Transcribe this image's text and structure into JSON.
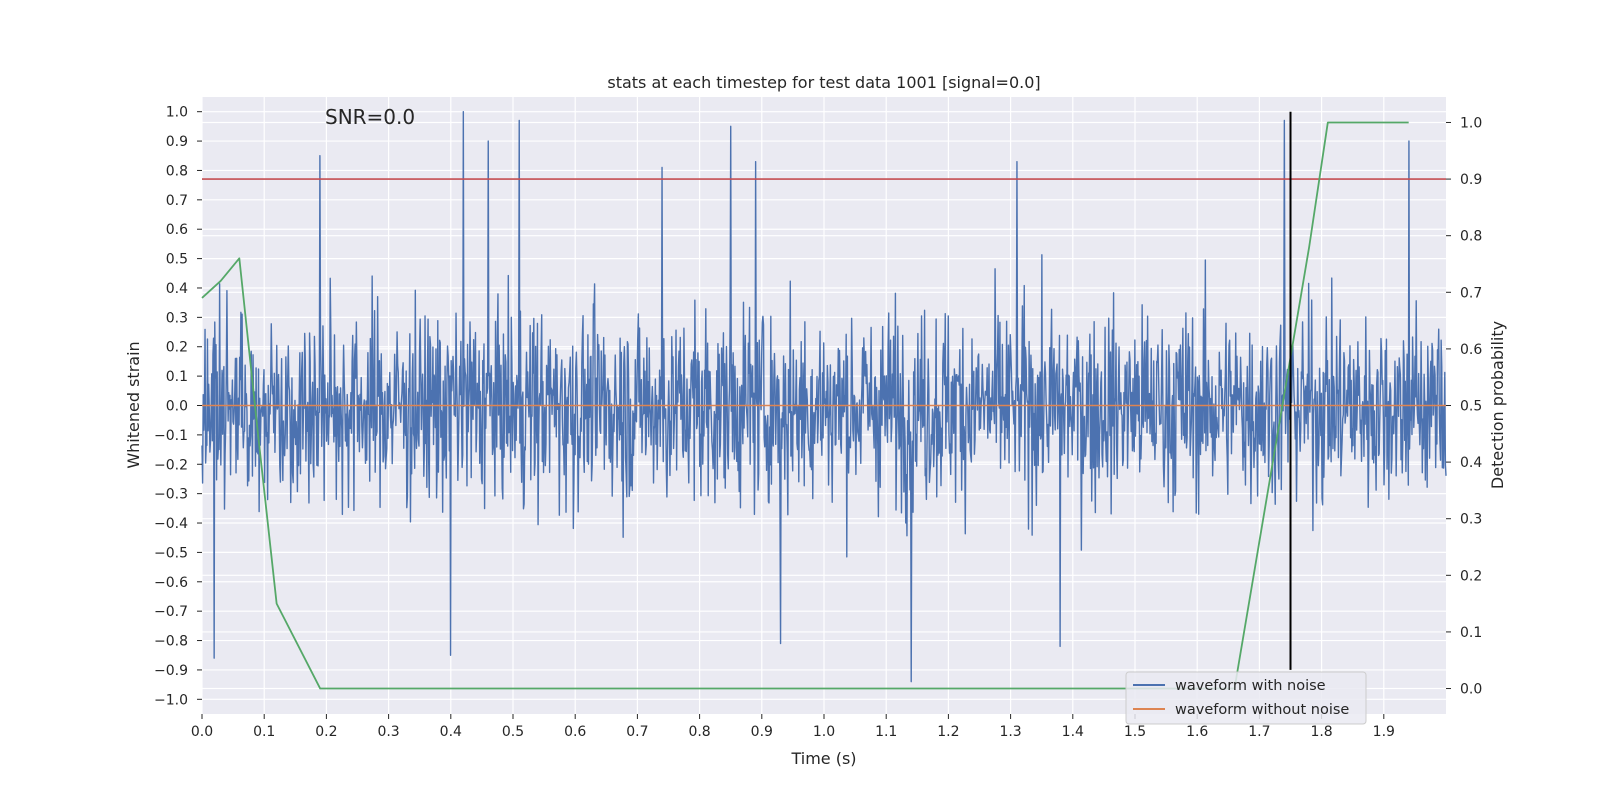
{
  "chart_data": {
    "type": "line",
    "title": "stats at each timestep for test data 1001 [signal=0.0]",
    "annotation": "SNR=0.0",
    "xlabel": "Time (s)",
    "ylabel": "Whitened strain",
    "y2label": "Detection probability",
    "xlim": [
      0.0,
      2.0
    ],
    "ylim": [
      -1.05,
      1.05
    ],
    "y2lim": [
      -0.045,
      1.045
    ],
    "xticks": [
      "0.0",
      "0.1",
      "0.2",
      "0.3",
      "0.4",
      "0.5",
      "0.6",
      "0.7",
      "0.8",
      "0.9",
      "1.0",
      "1.1",
      "1.2",
      "1.3",
      "1.4",
      "1.5",
      "1.6",
      "1.7",
      "1.8",
      "1.9"
    ],
    "yticks": [
      "1.0",
      "0.9",
      "0.8",
      "0.7",
      "0.6",
      "0.5",
      "0.4",
      "0.3",
      "0.2",
      "0.1",
      "0.0",
      "−0.1",
      "−0.2",
      "−0.3",
      "−0.4",
      "−0.5",
      "−0.6",
      "−0.7",
      "−0.8",
      "−0.9",
      "−1.0"
    ],
    "y2ticks": [
      "1.0",
      "0.9",
      "0.8",
      "0.7",
      "0.6",
      "0.5",
      "0.4",
      "0.3",
      "0.2",
      "0.1",
      "0.0"
    ],
    "threshold": {
      "axis": "right",
      "value": 0.9,
      "color": "#c44e52"
    },
    "vline": {
      "x": 1.75,
      "color": "#000000"
    },
    "series": [
      {
        "name": "waveform with noise",
        "axis": "left",
        "color": "#4c72b0",
        "kind": "noise",
        "n_samples": 2048,
        "t_start": 0.0,
        "t_end": 2.0,
        "peaks": [
          {
            "x": 0.42,
            "y": 1.0
          },
          {
            "x": 0.51,
            "y": 0.97
          },
          {
            "x": 1.74,
            "y": 0.97
          },
          {
            "x": 0.85,
            "y": 0.95
          },
          {
            "x": 0.19,
            "y": 0.85
          },
          {
            "x": 1.14,
            "y": -0.94
          },
          {
            "x": 0.02,
            "y": -0.86
          },
          {
            "x": 0.4,
            "y": -0.85
          },
          {
            "x": 1.38,
            "y": -0.82
          },
          {
            "x": 0.93,
            "y": -0.81
          },
          {
            "x": 1.94,
            "y": 0.9
          },
          {
            "x": 0.89,
            "y": 0.83
          },
          {
            "x": 0.46,
            "y": 0.9
          },
          {
            "x": 0.74,
            "y": 0.81
          },
          {
            "x": 1.31,
            "y": 0.83
          }
        ]
      },
      {
        "name": "waveform without noise",
        "axis": "left",
        "color": "#dd8452",
        "x": [
          0.0,
          2.0
        ],
        "y": [
          0.0,
          0.0
        ]
      },
      {
        "name": "detection probability",
        "axis": "right",
        "color": "#55a868",
        "x": [
          0.0,
          0.03,
          0.06,
          0.09,
          0.12,
          0.19,
          1.5,
          1.66,
          1.78,
          1.81,
          1.875,
          1.94
        ],
        "y": [
          0.69,
          0.72,
          0.76,
          0.45,
          0.15,
          0.0,
          0.0,
          0.0,
          0.78,
          1.0,
          1.0,
          1.0
        ]
      }
    ],
    "legend": [
      "waveform with noise",
      "waveform without noise"
    ],
    "legend_position": "lower-right"
  }
}
